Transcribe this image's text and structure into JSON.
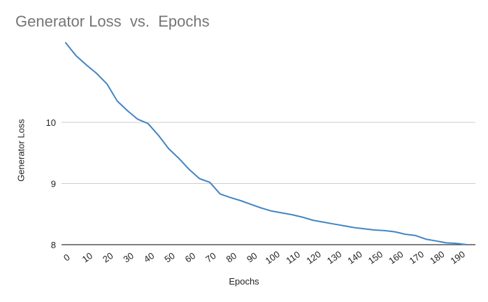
{
  "chart_data": {
    "type": "line",
    "title": "Generator Loss  vs.  Epochs",
    "xlabel": "Epochs",
    "ylabel": "Generator Loss",
    "x": [
      0,
      5,
      10,
      15,
      20,
      25,
      30,
      35,
      40,
      45,
      50,
      55,
      60,
      65,
      70,
      75,
      80,
      85,
      90,
      95,
      100,
      105,
      110,
      115,
      120,
      125,
      130,
      135,
      140,
      145,
      150,
      155,
      160,
      165,
      170,
      175,
      180,
      185,
      190,
      195
    ],
    "series": [
      {
        "values": [
          11.3,
          11.09,
          10.94,
          10.8,
          10.63,
          10.35,
          10.19,
          10.05,
          9.98,
          9.79,
          9.57,
          9.41,
          9.23,
          9.08,
          9.02,
          8.83,
          8.77,
          8.72,
          8.66,
          8.6,
          8.55,
          8.52,
          8.49,
          8.45,
          8.4,
          8.37,
          8.34,
          8.31,
          8.28,
          8.26,
          8.24,
          8.23,
          8.21,
          8.17,
          8.15,
          8.09,
          8.06,
          8.03,
          8.02,
          8.0
        ],
        "color": "#4285c4"
      }
    ],
    "x_ticks": [
      "0",
      "10",
      "20",
      "30",
      "40",
      "50",
      "60",
      "70",
      "80",
      "90",
      "100",
      "110",
      "120",
      "130",
      "140",
      "150",
      "160",
      "170",
      "180",
      "190"
    ],
    "y_ticks": [
      "8",
      "9",
      "10"
    ],
    "ylim": [
      8,
      11.3
    ],
    "xlim": [
      0,
      195
    ],
    "grid": "horizontal",
    "legend": "none"
  }
}
